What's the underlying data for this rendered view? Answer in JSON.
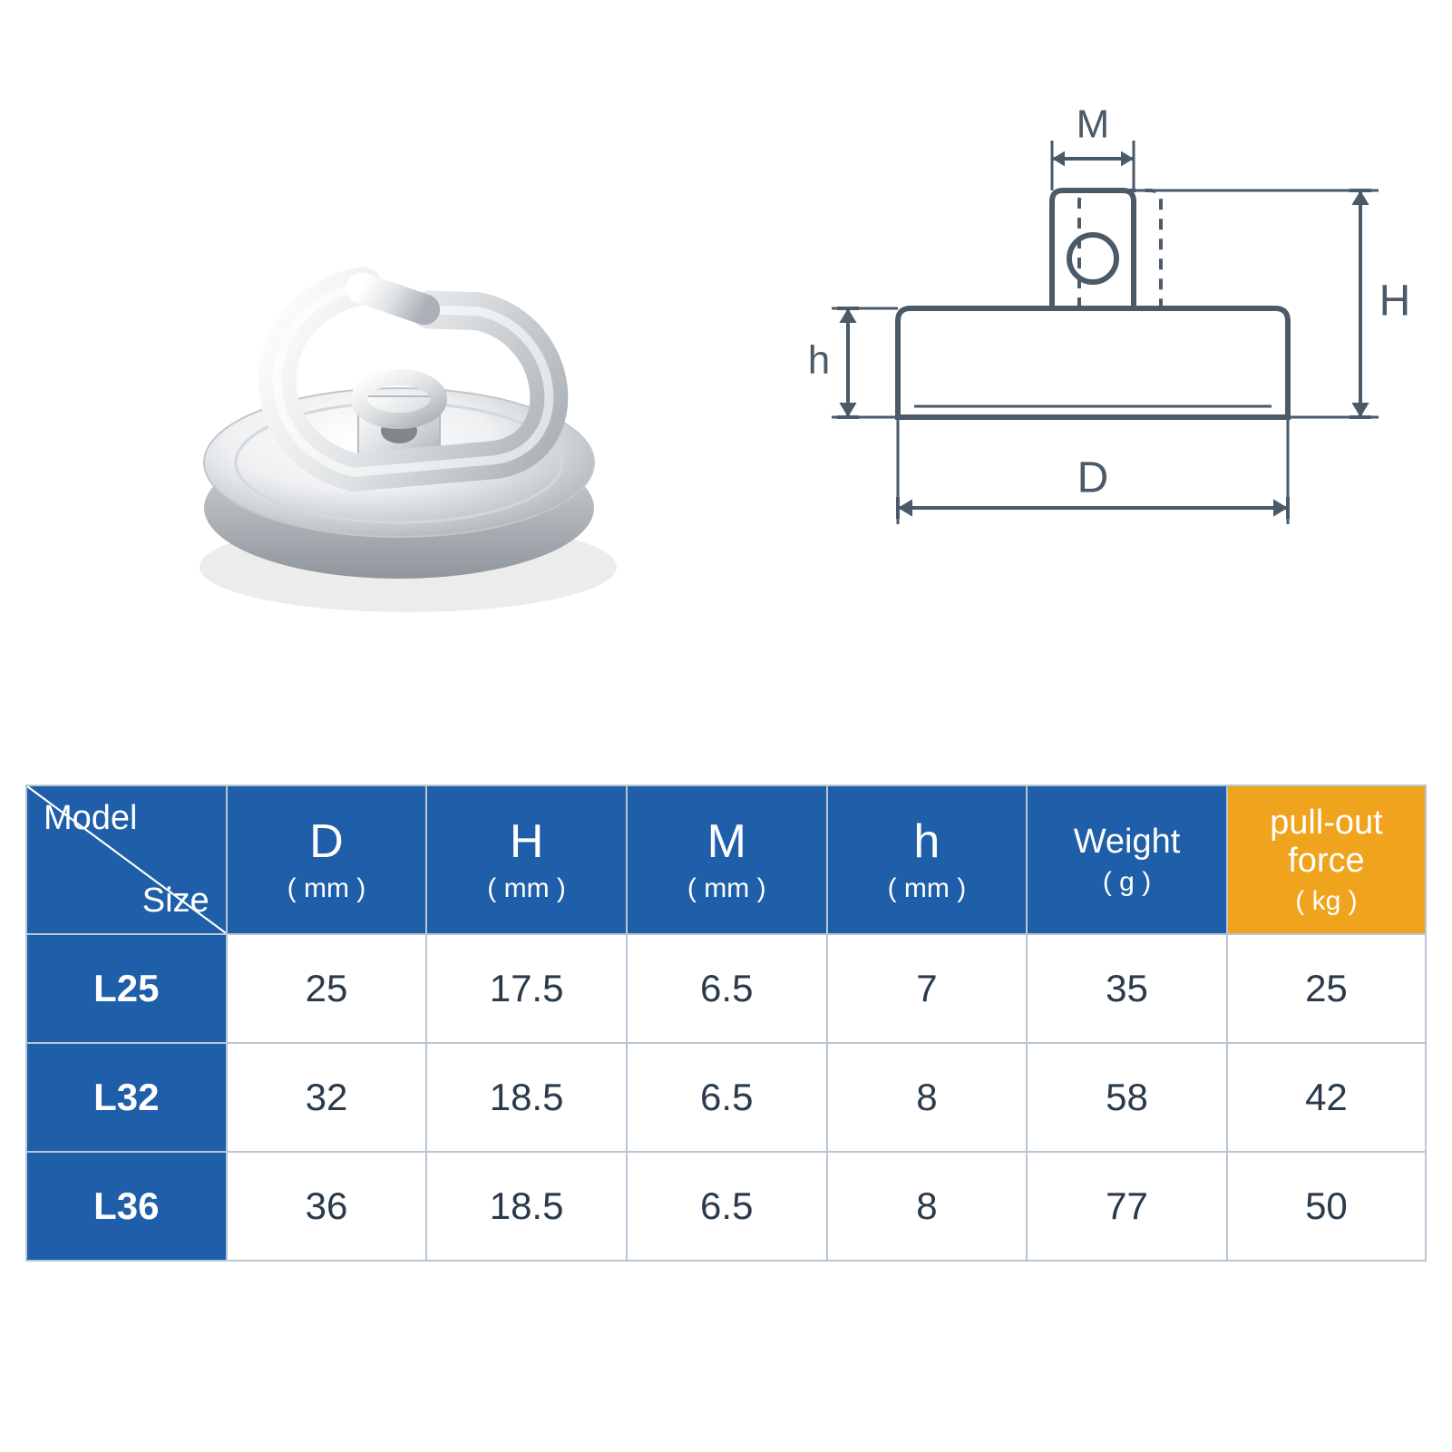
{
  "diagram": {
    "labels": {
      "M": "M",
      "H": "H",
      "h": "h",
      "D": "D"
    },
    "stroke": "#4a5a68",
    "stroke_width": 6,
    "dash": "12 10"
  },
  "photo": {
    "metal_light": "#f6f7f8",
    "metal_mid": "#d9dcdf",
    "metal_dark": "#9ea5aa",
    "shadow": "#e6e6e6"
  },
  "table": {
    "header_bg_blue": "#1f5ea8",
    "header_bg_orange": "#f0a31c",
    "row_label_bg": "#1f5ea8",
    "border_color": "#b9c7d4",
    "text_color": "#2a3a4a",
    "header_text_color": "#ffffff",
    "model_header": {
      "top": "Model",
      "bottom": "Size"
    },
    "columns": [
      {
        "main": "D",
        "unit": "( mm )"
      },
      {
        "main": "H",
        "unit": "( mm )"
      },
      {
        "main": "M",
        "unit": "( mm )"
      },
      {
        "main": "h",
        "unit": "( mm )"
      },
      {
        "main": "Weight",
        "unit": "( g )"
      },
      {
        "main": "pull-out force",
        "unit": "( kg )",
        "highlight": true
      }
    ],
    "rows": [
      {
        "label": "L25",
        "cells": [
          "25",
          "17.5",
          "6.5",
          "7",
          "35",
          "25"
        ]
      },
      {
        "label": "L32",
        "cells": [
          "32",
          "18.5",
          "6.5",
          "8",
          "58",
          "42"
        ]
      },
      {
        "label": "L36",
        "cells": [
          "36",
          "18.5",
          "6.5",
          "8",
          "77",
          "50"
        ]
      }
    ],
    "col_widths_pct": [
      14.3,
      14.3,
      14.3,
      14.3,
      14.3,
      14.3,
      14.2
    ]
  }
}
